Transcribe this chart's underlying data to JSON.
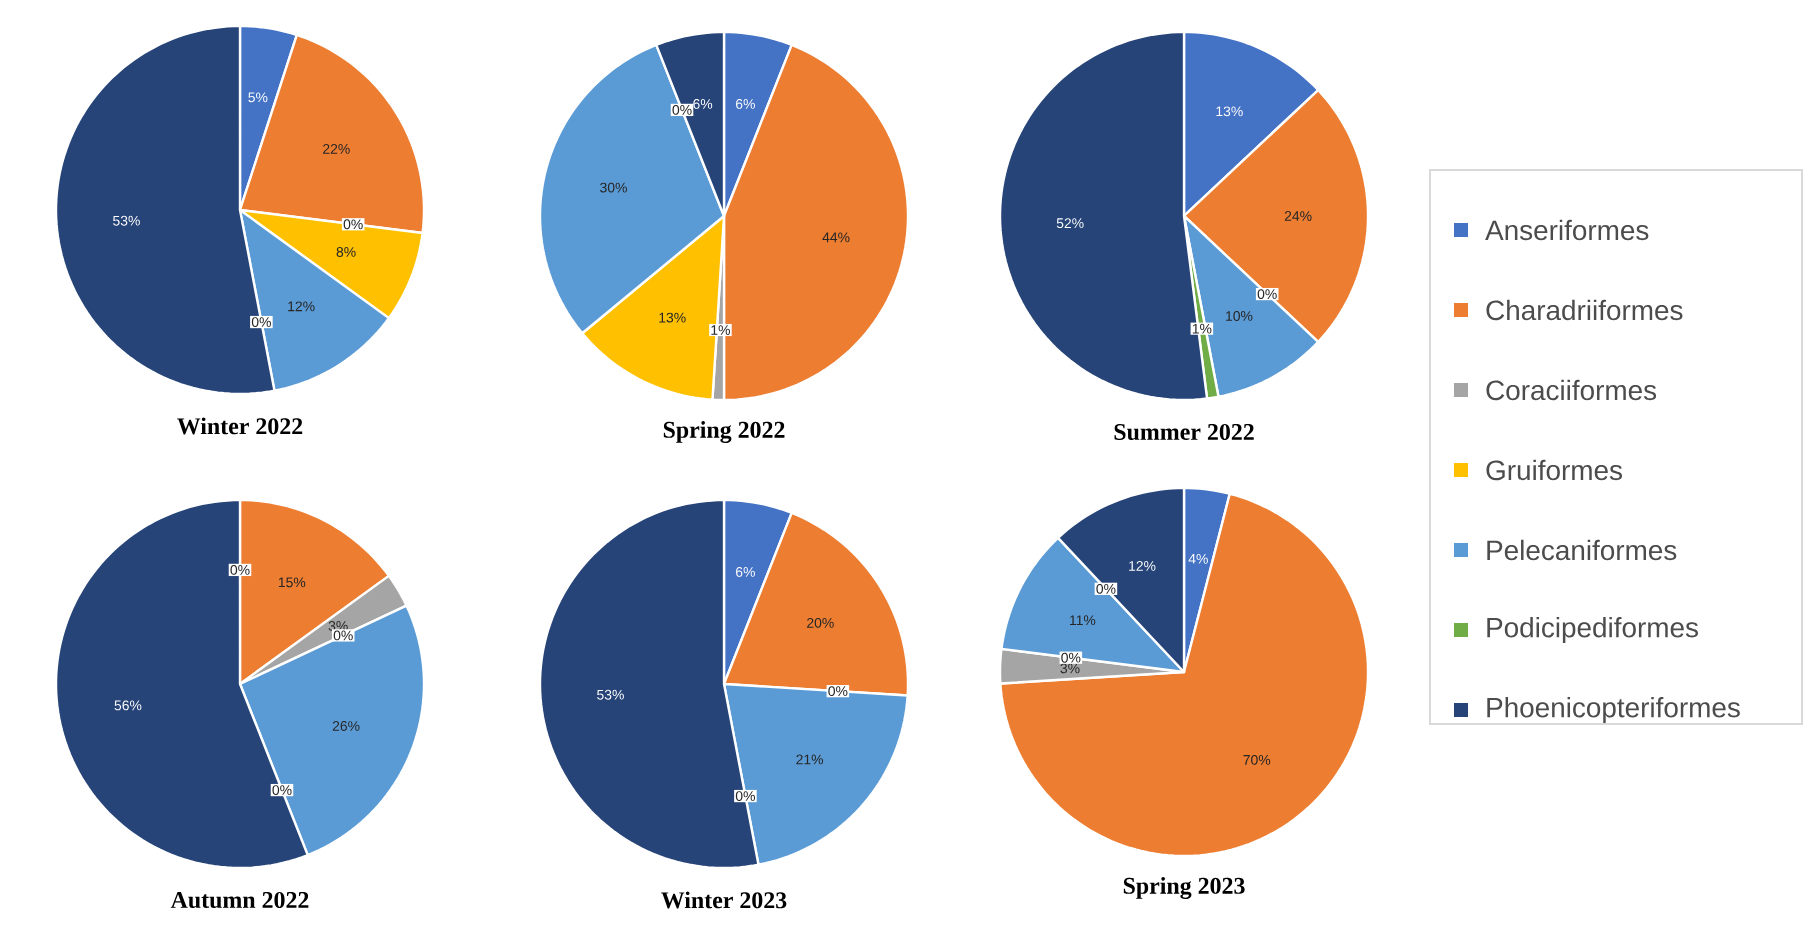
{
  "chart_data": [
    {
      "type": "pie",
      "title": "Winter 2022",
      "categories": [
        null,
        null,
        null,
        null,
        null,
        null,
        null
      ],
      "values": [
        5,
        22,
        0,
        8,
        12,
        0,
        53
      ],
      "colors": [
        "#4472c4",
        "#ed7d31",
        "#a5a5a5",
        "#ffc000",
        "#5b9bd5",
        "#70ad47",
        "#264478"
      ],
      "value_labels": [
        "5%",
        "22%",
        "0%",
        "8%",
        "12%",
        "0%",
        "53%"
      ]
    },
    {
      "type": "pie",
      "title": "Spring 2022",
      "categories": [
        null,
        null,
        null,
        null,
        null,
        null,
        null
      ],
      "values": [
        6,
        44,
        1,
        13,
        30,
        0,
        6
      ],
      "colors": [
        "#4472c4",
        "#ed7d31",
        "#a5a5a5",
        "#ffc000",
        "#5b9bd5",
        "#70ad47",
        "#264478"
      ],
      "value_labels": [
        "6%",
        "44%",
        "1%",
        "13%",
        "30%",
        "0%",
        "6%"
      ]
    },
    {
      "type": "pie",
      "title": "Summer 2022",
      "categories": [
        "Anseriformes",
        "Charadriiformes",
        "Coraciiformes",
        "Gruiformes",
        "Pelecaniformes",
        "Podicipediformes",
        "Phoenicopteriformes"
      ],
      "values": [
        13,
        24,
        0,
        0,
        10,
        1,
        52
      ],
      "colors": [
        "#4472c4",
        "#ed7d31",
        "#a5a5a5",
        "#ffc000",
        "#5b9bd5",
        "#70ad47",
        "#264478"
      ],
      "value_labels": [
        "13%",
        "24%",
        "0%",
        null,
        "10%",
        "1%",
        "52%"
      ],
      "legend": "right"
    },
    {
      "type": "pie",
      "title": "Autumn 2022",
      "categories": [
        null,
        null,
        null,
        null,
        null,
        null,
        null
      ],
      "values": [
        0,
        15,
        3,
        0,
        26,
        0,
        56
      ],
      "colors": [
        "#4472c4",
        "#ed7d31",
        "#a5a5a5",
        "#ffc000",
        "#5b9bd5",
        "#70ad47",
        "#264478"
      ],
      "value_labels": [
        "0%",
        "15%",
        "3%",
        "0%",
        "26%",
        "0%",
        "56%"
      ]
    },
    {
      "type": "pie",
      "title": "Winter 2023",
      "categories": [
        null,
        null,
        null,
        null,
        null,
        null,
        null
      ],
      "values": [
        6,
        20,
        0,
        0,
        21,
        0,
        53
      ],
      "colors": [
        "#4472c4",
        "#ed7d31",
        "#a5a5a5",
        "#ffc000",
        "#5b9bd5",
        "#70ad47",
        "#264478"
      ],
      "value_labels": [
        "6%",
        "20%",
        "0%",
        null,
        "21%",
        "0%",
        "53%"
      ]
    },
    {
      "type": "pie",
      "title": "Spring 2023",
      "categories": [
        null,
        null,
        null,
        null,
        null,
        null,
        null
      ],
      "values": [
        4,
        70,
        3,
        0,
        11,
        0,
        12
      ],
      "colors": [
        "#4472c4",
        "#ed7d31",
        "#a5a5a5",
        "#ffc000",
        "#5b9bd5",
        "#70ad47",
        "#264478"
      ],
      "value_labels": [
        "4%",
        "70%",
        "3%",
        "0%",
        "11%",
        "0%",
        "12%"
      ]
    }
  ]
}
